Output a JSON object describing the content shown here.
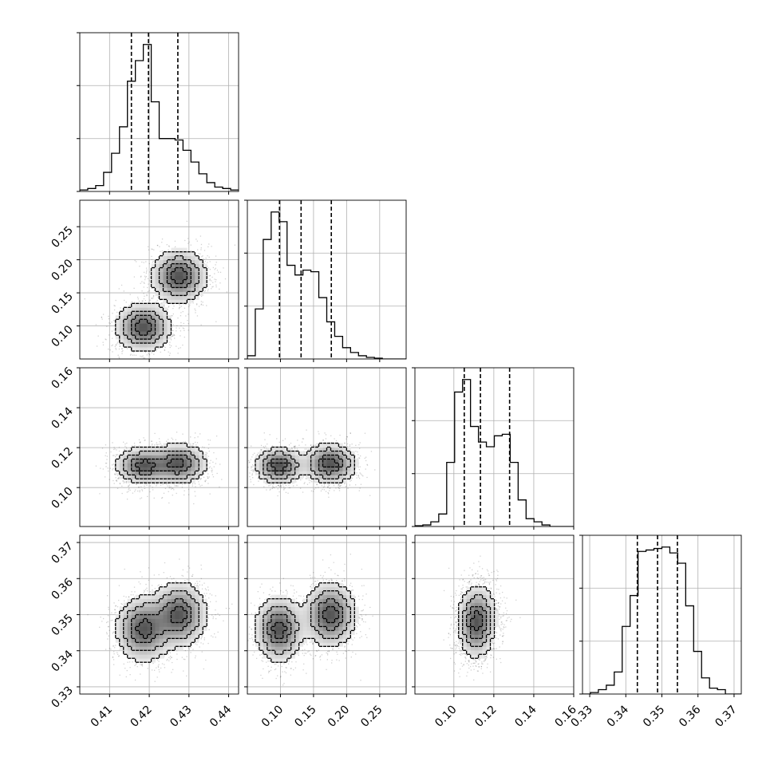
{
  "chart_data": {
    "type": "corner_plot",
    "grid": true,
    "parameters": [
      {
        "range": [
          0.4025,
          0.4425
        ],
        "ticks": [
          0.41,
          0.42,
          0.43,
          0.44
        ],
        "tick_labels": [
          "0.41",
          "0.42",
          "0.43",
          "0.44"
        ],
        "quantiles": [
          0.4155,
          0.4198,
          0.4272
        ],
        "hist": [
          0.01,
          0.02,
          0.04,
          0.13,
          0.26,
          0.44,
          0.75,
          0.89,
          1.0,
          0.61,
          0.36,
          0.36,
          0.35,
          0.28,
          0.2,
          0.12,
          0.06,
          0.03,
          0.02,
          0.01
        ]
      },
      {
        "range": [
          0.05,
          0.29
        ],
        "ticks": [
          0.1,
          0.15,
          0.2,
          0.25
        ],
        "tick_labels": [
          "0.10",
          "0.15",
          "0.20",
          "0.25"
        ],
        "quantiles": [
          0.0986,
          0.1312,
          0.1769
        ],
        "hist": [
          0.02,
          0.31,
          0.74,
          0.91,
          0.85,
          0.58,
          0.52,
          0.55,
          0.54,
          0.38,
          0.23,
          0.14,
          0.07,
          0.04,
          0.02,
          0.01,
          0.005,
          0.0,
          0.0,
          0.0
        ]
      },
      {
        "range": [
          0.0805,
          0.16
        ],
        "ticks": [
          0.1,
          0.12,
          0.14,
          0.16
        ],
        "tick_labels": [
          "0.10",
          "0.12",
          "0.14",
          "0.16"
        ],
        "quantiles": [
          0.1052,
          0.1133,
          0.1279
        ],
        "hist": [
          0.005,
          0.01,
          0.03,
          0.08,
          0.41,
          0.86,
          0.94,
          0.64,
          0.54,
          0.51,
          0.58,
          0.59,
          0.41,
          0.17,
          0.05,
          0.03,
          0.01,
          0.0,
          0.0,
          0.0
        ]
      },
      {
        "range": [
          0.328,
          0.372
        ],
        "ticks": [
          0.33,
          0.34,
          0.35,
          0.36,
          0.37
        ],
        "tick_labels": [
          "0.33",
          "0.34",
          "0.35",
          "0.36",
          "0.37"
        ],
        "quantiles": [
          0.3432,
          0.3488,
          0.3543
        ],
        "hist": [
          0.0,
          0.01,
          0.03,
          0.06,
          0.15,
          0.46,
          0.67,
          0.97,
          0.98,
          0.99,
          1.0,
          0.96,
          0.89,
          0.6,
          0.29,
          0.11,
          0.04,
          0.03,
          0.0,
          0.0
        ]
      }
    ],
    "density_components": [
      {
        "mean": [
          0.4185,
          0.098,
          0.111,
          0.346
        ],
        "sd": [
          0.0035,
          0.018,
          0.0045,
          0.0045
        ],
        "weight": 0.5
      },
      {
        "mean": [
          0.4275,
          0.175,
          0.112,
          0.35
        ],
        "sd": [
          0.0035,
          0.02,
          0.005,
          0.0045
        ],
        "weight": 0.5
      }
    ]
  }
}
